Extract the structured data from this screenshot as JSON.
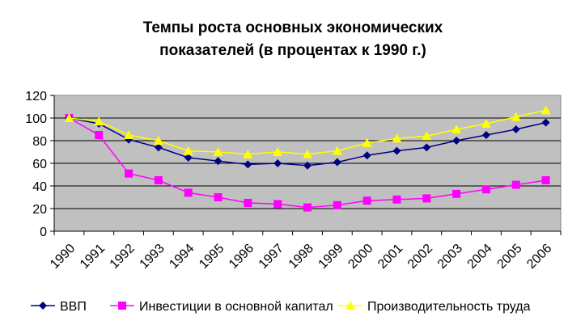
{
  "chart_data": {
    "type": "line",
    "title": [
      "Темпы роста основных экономических",
      "показателей (в процентах  к 1990 г.)"
    ],
    "categories": [
      "1990",
      "1991",
      "1992",
      "1993",
      "1994",
      "1995",
      "1996",
      "1997",
      "1998",
      "1999",
      "2000",
      "2001",
      "2002",
      "2003",
      "2004",
      "2005",
      "2006"
    ],
    "ylim": [
      0,
      120
    ],
    "yticks": [
      "0",
      "20",
      "40",
      "60",
      "80",
      "100",
      "120"
    ],
    "grid": true,
    "legend": "bottom",
    "series": [
      {
        "name": "ВВП",
        "color": "#000080",
        "marker": "diamond",
        "values": [
          100,
          95,
          81,
          74,
          65,
          62,
          59,
          60,
          58,
          61,
          67,
          71,
          74,
          80,
          85,
          90,
          96
        ]
      },
      {
        "name": "Инвестиции в основной капитал",
        "color": "#FF00FF",
        "marker": "square",
        "values": [
          100,
          85,
          51,
          45,
          34,
          30,
          25,
          24,
          21,
          23,
          27,
          28,
          29,
          33,
          37,
          41,
          45
        ]
      },
      {
        "name": "Производительность труда",
        "color": "#FFFF00",
        "marker": "triangle",
        "values": [
          100,
          97,
          85,
          80,
          71,
          70,
          68,
          70,
          68,
          71,
          78,
          82,
          84,
          90,
          95,
          101,
          107
        ]
      }
    ]
  }
}
